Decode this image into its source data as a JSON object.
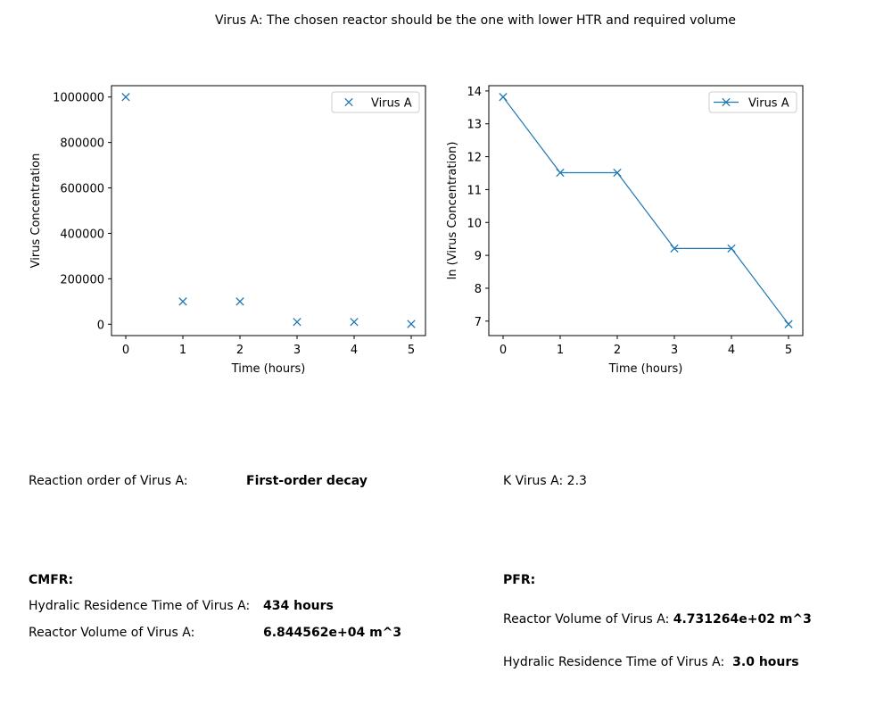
{
  "suptitle": "Virus A: The chosen reactor should be the one with lower HTR and required volume",
  "colors": {
    "series": "#1f77b4",
    "axis": "#000000"
  },
  "chart_data": [
    {
      "type": "scatter",
      "marker": "x",
      "xlabel": "Time (hours)",
      "ylabel": "Virus Concentration",
      "x": [
        0,
        1,
        2,
        3,
        4,
        5
      ],
      "series": [
        {
          "name": "Virus A",
          "values": [
            1000000,
            100000,
            100000,
            10000,
            10000,
            1000
          ]
        }
      ],
      "xlim": [
        -0.25,
        5.25
      ],
      "ylim": [
        -49950,
        1049950
      ],
      "xticks": [
        "0",
        "1",
        "2",
        "3",
        "4",
        "5"
      ],
      "yticks": [
        "0",
        "200000",
        "400000",
        "600000",
        "800000",
        "1000000"
      ],
      "legend": "upper right"
    },
    {
      "type": "line",
      "marker": "x",
      "xlabel": "Time (hours)",
      "ylabel": "ln (Virus Concentration)",
      "x": [
        0,
        1,
        2,
        3,
        4,
        5
      ],
      "series": [
        {
          "name": "Virus A",
          "values": [
            13.8155,
            11.5129,
            11.5129,
            9.2103,
            9.2103,
            6.9078
          ]
        }
      ],
      "xlim": [
        -0.25,
        5.25
      ],
      "ylim": [
        6.56,
        14.16
      ],
      "xticks": [
        "0",
        "1",
        "2",
        "3",
        "4",
        "5"
      ],
      "yticks": [
        "7",
        "8",
        "9",
        "10",
        "11",
        "12",
        "13",
        "14"
      ],
      "legend": "upper right"
    }
  ],
  "results": {
    "order_label": "Reaction order of Virus A:",
    "order_value": "First-order decay",
    "k_label": "K Virus A:",
    "k_value": "2.3",
    "cmfr": {
      "heading": "CMFR:",
      "hrt_label": "Hydralic Residence Time of Virus A:",
      "hrt_value": "434 hours",
      "vol_label": "Reactor Volume of Virus A:",
      "vol_value": "6.844562e+04 m^3"
    },
    "pfr": {
      "heading": "PFR:",
      "vol_label": "Reactor Volume of Virus A:",
      "vol_value": "4.731264e+02 m^3",
      "hrt_label": "Hydralic Residence Time of Virus A:",
      "hrt_value": "3.0 hours"
    }
  }
}
